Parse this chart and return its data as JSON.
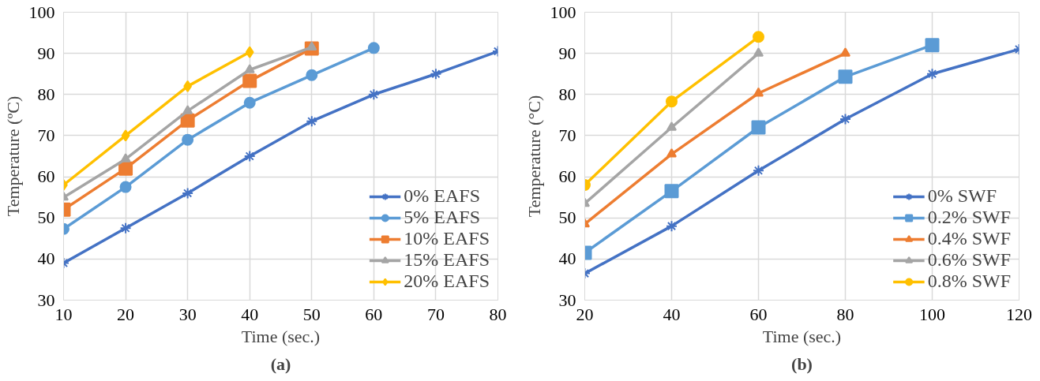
{
  "chart_data": [
    {
      "type": "line",
      "xlabel": "Time (sec.)",
      "ylabel": "Temperature (ºC)",
      "annotations": [
        "(a)"
      ],
      "xlim": [
        10,
        80
      ],
      "xticks": [
        10,
        20,
        30,
        40,
        50,
        60,
        70,
        80
      ],
      "ylim": [
        30,
        100
      ],
      "yticks": [
        30,
        40,
        50,
        60,
        70,
        80,
        90,
        100
      ],
      "grid": true,
      "legend": "bottom right",
      "x": [
        10,
        20,
        30,
        40,
        50,
        60,
        70,
        80
      ],
      "series": [
        {
          "name": "0% EAFS",
          "color": "#4472c4",
          "marker": "cross",
          "values": [
            39,
            47.5,
            56,
            65,
            73.5,
            80,
            85,
            90.5
          ]
        },
        {
          "name": "5% EAFS",
          "color": "#5b9bd5",
          "marker": "circle",
          "values": [
            47.3,
            57.5,
            69,
            78,
            84.7,
            91.3,
            null,
            null
          ]
        },
        {
          "name": "10% EAFS",
          "color": "#ed7d31",
          "marker": "square",
          "values": [
            52,
            62,
            73.7,
            83.3,
            91.2,
            null,
            null,
            null
          ]
        },
        {
          "name": "15% EAFS",
          "color": "#a5a5a5",
          "marker": "triangle",
          "values": [
            55,
            64.3,
            76,
            86,
            91.5,
            null,
            null,
            null
          ]
        },
        {
          "name": "20% EAFS",
          "color": "#ffc000",
          "marker": "diamond",
          "values": [
            58,
            70,
            82,
            90.3,
            null,
            null,
            null,
            null
          ]
        }
      ]
    },
    {
      "type": "line",
      "xlabel": "Time (sec.)",
      "ylabel": "Temperature (°C)",
      "annotations": [
        "(b)"
      ],
      "xlim": [
        20,
        120
      ],
      "xticks": [
        20,
        40,
        60,
        80,
        100,
        120
      ],
      "ylim": [
        30,
        100
      ],
      "yticks": [
        30,
        40,
        50,
        60,
        70,
        80,
        90,
        100
      ],
      "grid": true,
      "legend": "bottom right",
      "x": [
        20,
        40,
        60,
        80,
        100,
        120
      ],
      "series": [
        {
          "name": "0% SWF",
          "color": "#4472c4",
          "marker": "cross",
          "values": [
            36.5,
            48,
            61.5,
            74,
            85,
            91
          ]
        },
        {
          "name": "0.2% SWF",
          "color": "#5b9bd5",
          "marker": "square",
          "values": [
            41.5,
            56.5,
            72,
            84.3,
            92,
            null
          ]
        },
        {
          "name": "0.4% SWF",
          "color": "#ed7d31",
          "marker": "triangle",
          "values": [
            48.5,
            65.5,
            80.3,
            90,
            null,
            null
          ]
        },
        {
          "name": "0.6% SWF",
          "color": "#a5a5a5",
          "marker": "triangle",
          "values": [
            53.5,
            72,
            90,
            null,
            null,
            null
          ]
        },
        {
          "name": "0.8% SWF",
          "color": "#ffc000",
          "marker": "circle",
          "values": [
            58,
            78.3,
            94,
            null,
            null,
            null
          ]
        }
      ]
    }
  ]
}
